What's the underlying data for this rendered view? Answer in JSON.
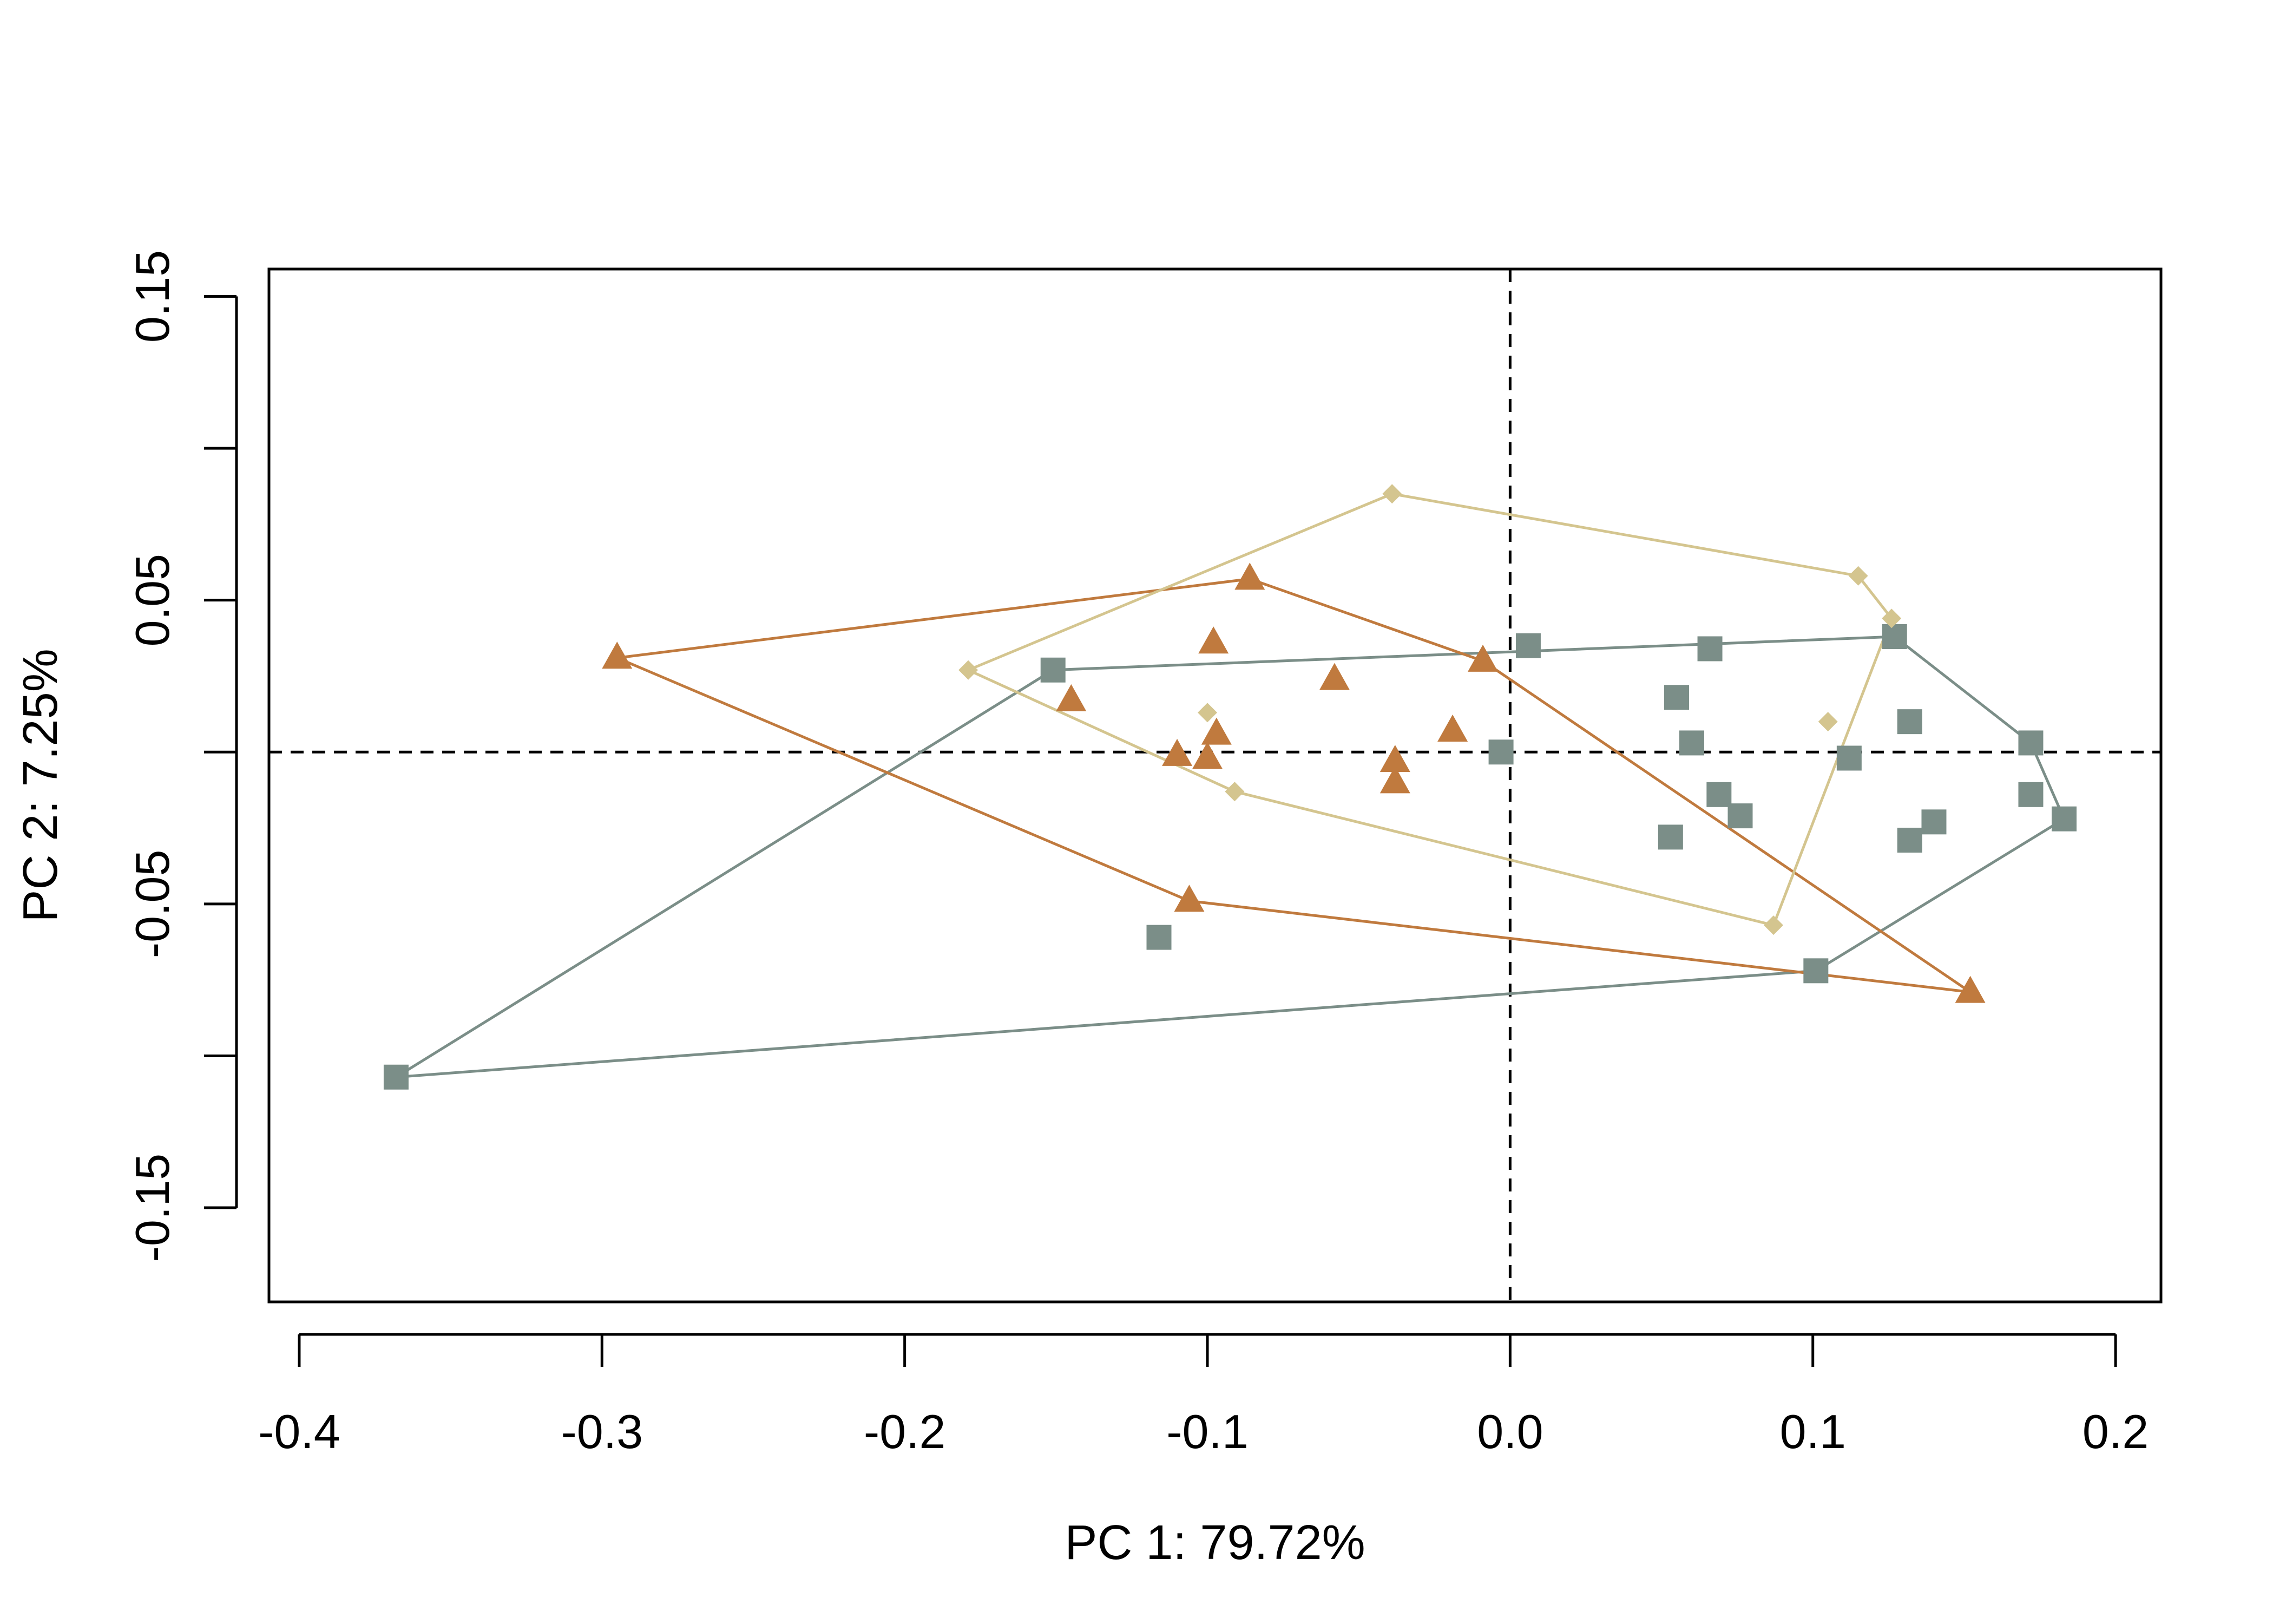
{
  "chart_data": {
    "type": "scatter",
    "title": "",
    "xlabel": "PC 1: 79.72%",
    "ylabel": "PC 2: 7.25%",
    "xlim": [
      -0.41,
      0.215
    ],
    "ylim": [
      -0.181,
      0.159
    ],
    "xticks": [
      -0.4,
      -0.3,
      -0.2,
      -0.1,
      0.0,
      0.1,
      0.2
    ],
    "xtick_labels": [
      "-0.4",
      "-0.3",
      "-0.2",
      "-0.1",
      "0.0",
      "0.1",
      "0.2"
    ],
    "yticks": [
      -0.15,
      -0.1,
      -0.05,
      0.0,
      0.05,
      0.1,
      0.15
    ],
    "ytick_labels": [
      "-0.15",
      "",
      "-0.05",
      "",
      "0.05",
      "",
      "0.15"
    ],
    "reference_lines": {
      "x": 0.0,
      "y": 0.0,
      "style": "dashed"
    },
    "grid": false,
    "legend": "none",
    "series": [
      {
        "marker": "square",
        "color": "#7b8e88",
        "points": [
          [
            -0.368,
            -0.107
          ],
          [
            -0.151,
            0.027
          ],
          [
            -0.116,
            -0.061
          ],
          [
            -0.003,
            0.0
          ],
          [
            0.006,
            0.035
          ],
          [
            0.055,
            0.018
          ],
          [
            0.06,
            0.003
          ],
          [
            0.066,
            0.034
          ],
          [
            0.069,
            -0.014
          ],
          [
            0.076,
            -0.021
          ],
          [
            0.053,
            -0.028
          ],
          [
            0.101,
            -0.072
          ],
          [
            0.112,
            -0.002
          ],
          [
            0.127,
            0.038
          ],
          [
            0.132,
            0.01
          ],
          [
            0.132,
            -0.029
          ],
          [
            0.14,
            -0.023
          ],
          [
            0.172,
            0.003
          ],
          [
            0.172,
            -0.014
          ],
          [
            0.183,
            -0.022
          ]
        ],
        "hull": [
          [
            -0.368,
            -0.107
          ],
          [
            -0.151,
            0.027
          ],
          [
            0.127,
            0.038
          ],
          [
            0.172,
            0.003
          ],
          [
            0.183,
            -0.022
          ],
          [
            0.101,
            -0.072
          ]
        ]
      },
      {
        "marker": "triangle",
        "color": "#c07a3e",
        "points": [
          [
            -0.295,
            0.031
          ],
          [
            -0.145,
            0.017
          ],
          [
            -0.11,
            -0.001
          ],
          [
            -0.1,
            -0.002
          ],
          [
            -0.098,
            0.036
          ],
          [
            -0.097,
            0.006
          ],
          [
            -0.106,
            -0.049
          ],
          [
            -0.086,
            0.057
          ],
          [
            -0.058,
            0.024
          ],
          [
            -0.038,
            -0.003
          ],
          [
            -0.038,
            -0.01
          ],
          [
            -0.019,
            0.007
          ],
          [
            -0.009,
            0.03
          ],
          [
            0.152,
            -0.079
          ]
        ],
        "hull": [
          [
            -0.295,
            0.031
          ],
          [
            -0.086,
            0.057
          ],
          [
            -0.009,
            0.03
          ],
          [
            0.152,
            -0.079
          ],
          [
            -0.106,
            -0.049
          ]
        ]
      },
      {
        "marker": "diamond",
        "color": "#d4c58f",
        "points": [
          [
            -0.179,
            0.027
          ],
          [
            -0.1,
            0.013
          ],
          [
            -0.091,
            -0.013
          ],
          [
            -0.039,
            0.085
          ],
          [
            0.087,
            -0.057
          ],
          [
            0.105,
            0.01
          ],
          [
            0.115,
            0.058
          ],
          [
            0.126,
            0.044
          ]
        ],
        "hull": [
          [
            -0.179,
            0.027
          ],
          [
            -0.039,
            0.085
          ],
          [
            0.115,
            0.058
          ],
          [
            0.126,
            0.044
          ],
          [
            0.087,
            -0.057
          ],
          [
            -0.091,
            -0.013
          ]
        ]
      }
    ]
  }
}
